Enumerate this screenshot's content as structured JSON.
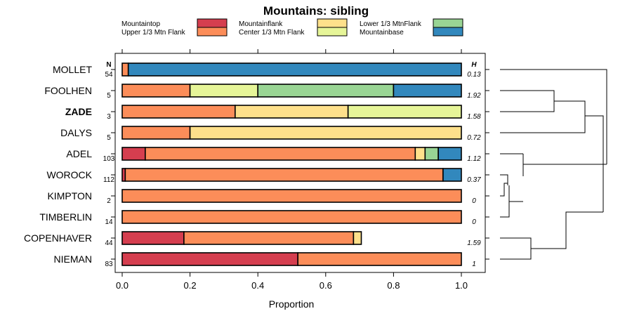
{
  "chart_data": {
    "type": "bar",
    "subtype": "horizontal-stacked-proportion-with-dendrogram",
    "title": "Mountains: sibling",
    "xlabel": "Proportion",
    "xlim": [
      0,
      1
    ],
    "xticks": [
      "0.0",
      "0.2",
      "0.4",
      "0.6",
      "0.8",
      "1.0"
    ],
    "xtick_values": [
      0,
      0.2,
      0.4,
      0.6,
      0.8,
      1.0
    ],
    "n_header": "N",
    "h_header": "H",
    "legend": [
      {
        "name": "Mountaintop",
        "color": "#d53e4f"
      },
      {
        "name": "Upper 1/3 Mtn Flank",
        "color": "#fc8d59"
      },
      {
        "name": "Mountainflank",
        "color": "#fee08b"
      },
      {
        "name": "Center 1/3 Mtn Flank",
        "color": "#e6f598"
      },
      {
        "name": "Lower 1/3 MtnFlank",
        "color": "#99d594"
      },
      {
        "name": "Mountainbase",
        "color": "#3288bd"
      }
    ],
    "categories": [
      "MOLLET",
      "FOOLHEN",
      "ZADE",
      "DALYS",
      "ADEL",
      "WOROCK",
      "KIMPTON",
      "TIMBERLIN",
      "COPENHAVER",
      "NIEMAN"
    ],
    "highlight": "ZADE",
    "n": [
      "54",
      "5",
      "3",
      "5",
      "103",
      "112",
      "2",
      "14",
      "44",
      "83"
    ],
    "h": [
      "0.13",
      "1.92",
      "1.58",
      "0.72",
      "1.12",
      "0.37",
      "0",
      "0",
      "1.59",
      "1"
    ],
    "series": [
      {
        "name": "Mountaintop",
        "values": [
          0,
          0,
          0,
          0,
          0.068,
          0.009,
          0,
          0,
          0.182,
          0.518
        ]
      },
      {
        "name": "Upper 1/3 Mtn Flank",
        "values": [
          0.018,
          0.2,
          0.333,
          0.2,
          0.796,
          0.937,
          1,
          1,
          0.5,
          0.482
        ]
      },
      {
        "name": "Mountainflank",
        "values": [
          0,
          0,
          0.333,
          0.8,
          0.029,
          0,
          0,
          0,
          0.023,
          0
        ]
      },
      {
        "name": "Center 1/3 Mtn Flank",
        "values": [
          0,
          0.2,
          0.334,
          0,
          0,
          0,
          0,
          0,
          0,
          0
        ]
      },
      {
        "name": "Lower 1/3 MtnFlank",
        "values": [
          0,
          0.4,
          0,
          0,
          0.039,
          0,
          0,
          0,
          0,
          0
        ]
      },
      {
        "name": "Mountainbase",
        "values": [
          0.982,
          0.2,
          0,
          0,
          0.068,
          0.054,
          0,
          0,
          0,
          0
        ]
      }
    ]
  }
}
